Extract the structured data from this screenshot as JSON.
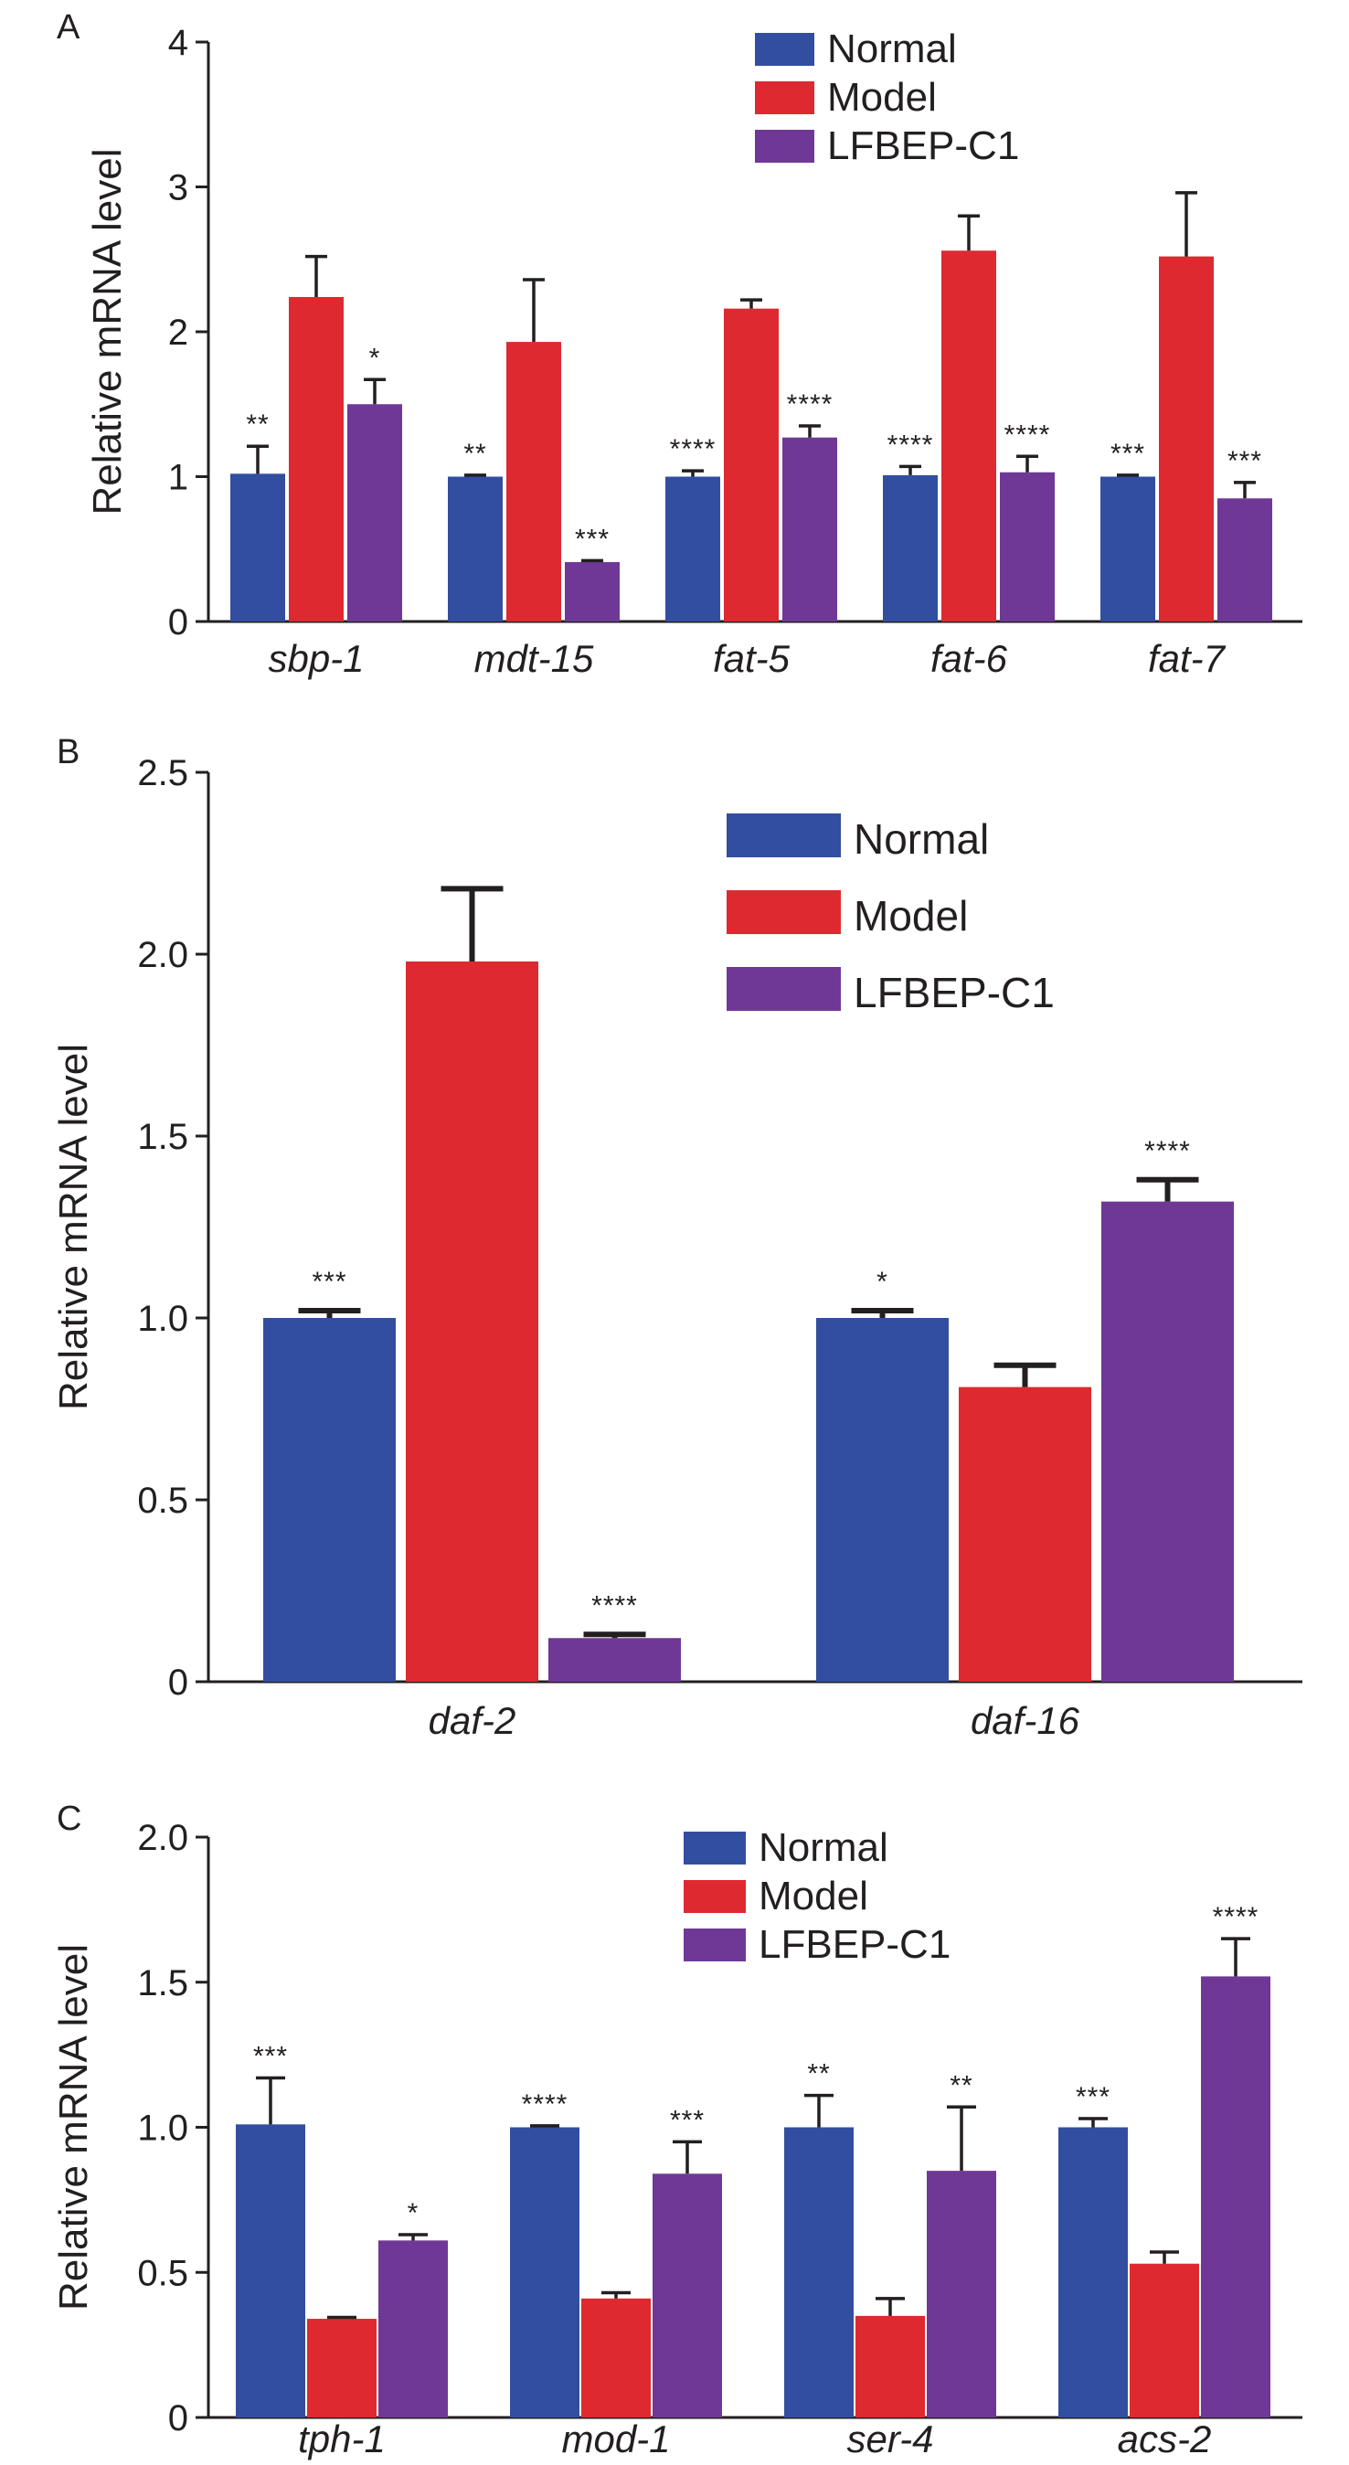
{
  "colors": {
    "Normal": "#324ea0",
    "Model": "#de2930",
    "LFBEP-C1": "#6f3896",
    "axis": "#231f20"
  },
  "chart_data": [
    {
      "panel": "A",
      "type": "bar",
      "ylabel": "Relative mRNA level",
      "ylim": [
        0,
        4
      ],
      "yticks": [
        "0",
        "1",
        "2",
        "3",
        "4"
      ],
      "legend_position": "top-right",
      "categories": [
        "sbp-1",
        "mdt-15",
        "fat-5",
        "fat-6",
        "fat-7"
      ],
      "series": [
        {
          "name": "Normal",
          "values": [
            1.02,
            1.0,
            1.0,
            1.01,
            1.0
          ],
          "errors": [
            0.19,
            0.01,
            0.04,
            0.06,
            0.01
          ],
          "significance": [
            "**",
            "**",
            "****",
            "****",
            "***"
          ]
        },
        {
          "name": "Model",
          "values": [
            2.24,
            1.93,
            2.16,
            2.56,
            2.52
          ],
          "errors": [
            0.28,
            0.43,
            0.06,
            0.24,
            0.44
          ],
          "significance": [
            "",
            "",
            "",
            "",
            ""
          ]
        },
        {
          "name": "LFBEP-C1",
          "values": [
            1.5,
            0.41,
            1.27,
            1.03,
            0.85
          ],
          "errors": [
            0.17,
            0.01,
            0.08,
            0.11,
            0.11
          ],
          "significance": [
            "*",
            "***",
            "****",
            "****",
            "***"
          ]
        }
      ]
    },
    {
      "panel": "B",
      "type": "bar",
      "ylabel": "Relative mRNA level",
      "ylim": [
        0,
        2.5
      ],
      "yticks": [
        "0",
        "0.5",
        "1.0",
        "1.5",
        "2.0",
        "2.5"
      ],
      "legend_position": "top-right",
      "categories": [
        "daf-2",
        "daf-16"
      ],
      "series": [
        {
          "name": "Normal",
          "values": [
            1.0,
            1.0
          ],
          "errors": [
            0.02,
            0.02
          ],
          "significance": [
            "***",
            "*"
          ]
        },
        {
          "name": "Model",
          "values": [
            1.98,
            0.81
          ],
          "errors": [
            0.2,
            0.06
          ],
          "significance": [
            "",
            ""
          ]
        },
        {
          "name": "LFBEP-C1",
          "values": [
            0.12,
            1.32
          ],
          "errors": [
            0.01,
            0.06
          ],
          "significance": [
            "****",
            "****"
          ]
        }
      ]
    },
    {
      "panel": "C",
      "type": "bar",
      "ylabel": "Relative mRNA level",
      "ylim": [
        0,
        2.0
      ],
      "yticks": [
        "0",
        "0.5",
        "1.0",
        "1.5",
        "2.0"
      ],
      "legend_position": "top-center",
      "categories": [
        "tph-1",
        "mod-1",
        "ser-4",
        "acs-2"
      ],
      "series": [
        {
          "name": "Normal",
          "values": [
            1.01,
            1.0,
            1.0,
            1.0
          ],
          "errors": [
            0.16,
            0.005,
            0.11,
            0.03
          ],
          "significance": [
            "***",
            "****",
            "**",
            "***"
          ]
        },
        {
          "name": "Model",
          "values": [
            0.34,
            0.41,
            0.35,
            0.53
          ],
          "errors": [
            0.005,
            0.02,
            0.06,
            0.04
          ],
          "significance": [
            "",
            "",
            "",
            ""
          ]
        },
        {
          "name": "LFBEP-C1",
          "values": [
            0.61,
            0.84,
            0.85,
            1.52
          ],
          "errors": [
            0.02,
            0.11,
            0.22,
            0.13
          ],
          "significance": [
            "*",
            "***",
            "**",
            "****"
          ]
        }
      ]
    }
  ]
}
